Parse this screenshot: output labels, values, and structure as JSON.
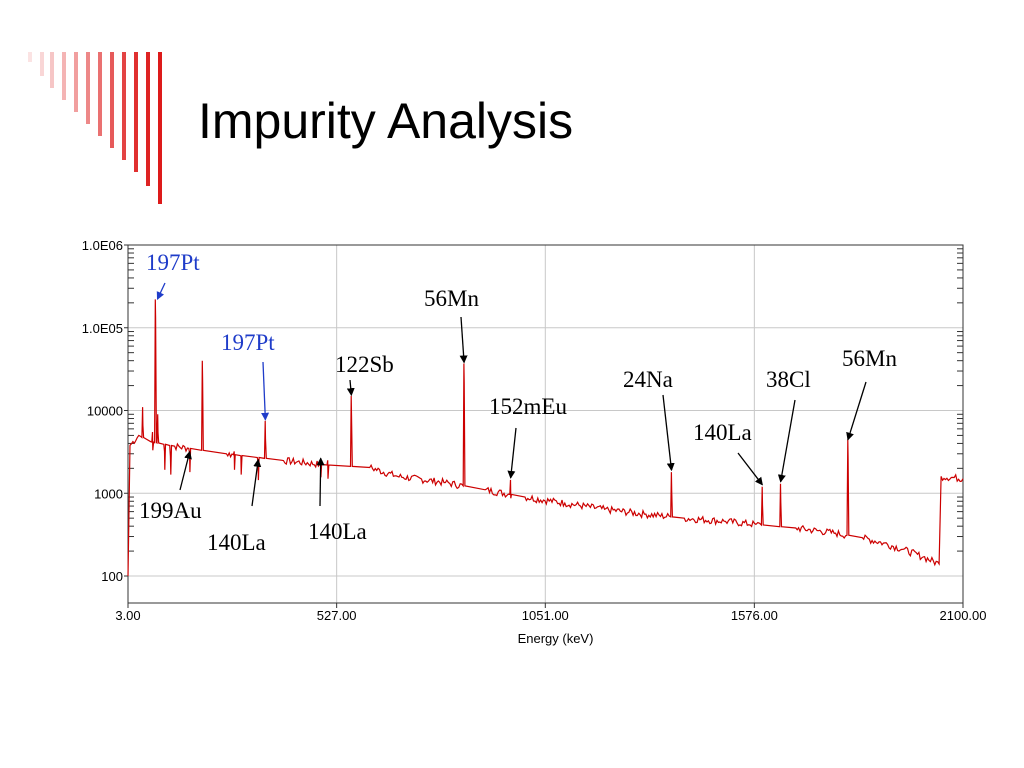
{
  "slide": {
    "title": "Impurity Analysis"
  },
  "colors": {
    "decoration": "#dd1a1a",
    "spectrum": "#cc0000",
    "annotation_blue": "#1f3cc9",
    "annotation_black": "#000000",
    "grid": "#c8c8c8"
  },
  "chart_data": {
    "type": "line",
    "title": "",
    "xlabel": "Energy (keV)",
    "ylabel": "",
    "xlim": [
      3,
      2100
    ],
    "ylim": [
      100,
      1000000
    ],
    "y_scale": "log",
    "grid": true,
    "x_ticks": [
      {
        "value": 3,
        "label": "3.00"
      },
      {
        "value": 527,
        "label": "527.00"
      },
      {
        "value": 1051,
        "label": "1051.00"
      },
      {
        "value": 1576,
        "label": "1576.00"
      },
      {
        "value": 2100,
        "label": "2100.00"
      }
    ],
    "y_ticks": [
      {
        "value": 1000000,
        "label": "1.0E06"
      },
      {
        "value": 100000,
        "label": "1.0E05"
      },
      {
        "value": 10000,
        "label": "10000"
      },
      {
        "value": 1000,
        "label": "1000"
      },
      {
        "value": 100,
        "label": "100"
      }
    ],
    "series": [
      {
        "baseline": [
          [
            3,
            100
          ],
          [
            8,
            3800
          ],
          [
            30,
            5000
          ],
          [
            60,
            4200
          ],
          [
            120,
            3700
          ],
          [
            250,
            3000
          ],
          [
            390,
            2500
          ],
          [
            500,
            2200
          ],
          [
            610,
            2050
          ],
          [
            680,
            1600
          ],
          [
            800,
            1350
          ],
          [
            900,
            1100
          ],
          [
            1000,
            900
          ],
          [
            1100,
            760
          ],
          [
            1200,
            640
          ],
          [
            1300,
            560
          ],
          [
            1400,
            500
          ],
          [
            1500,
            460
          ],
          [
            1580,
            420
          ],
          [
            1680,
            380
          ],
          [
            1780,
            330
          ],
          [
            1847,
            290
          ],
          [
            1900,
            250
          ],
          [
            1950,
            210
          ],
          [
            2000,
            170
          ],
          [
            2040,
            140
          ],
          [
            2045,
            1600
          ],
          [
            2100,
            1500
          ]
        ],
        "peaks": [
          [
            40,
            11000
          ],
          [
            65,
            5500
          ],
          [
            72,
            220000
          ],
          [
            78,
            9000
          ],
          [
            95,
            3200
          ],
          [
            110,
            2800
          ],
          [
            158,
            3000
          ],
          [
            190,
            40000
          ],
          [
            270,
            3200
          ],
          [
            287,
            2800
          ],
          [
            330,
            2400
          ],
          [
            348,
            7500
          ],
          [
            487,
            2600
          ],
          [
            505,
            2500
          ],
          [
            564,
            15000
          ],
          [
            847,
            37000
          ],
          [
            964,
            1450
          ],
          [
            1368,
            1800
          ],
          [
            1596,
            1200
          ],
          [
            1642,
            1300
          ],
          [
            1811,
            4500
          ]
        ]
      }
    ],
    "annotations": [
      {
        "text": "197Pt",
        "color": "blue",
        "target": [
          77,
          210000
        ]
      },
      {
        "text": "197Pt",
        "color": "blue",
        "target": [
          348,
          7300
        ]
      },
      {
        "text": "56Mn",
        "color": "black",
        "target": [
          847,
          36000
        ]
      },
      {
        "text": "122Sb",
        "color": "black",
        "target": [
          564,
          14500
        ]
      },
      {
        "text": "152mEu",
        "color": "black",
        "target": [
          964,
          1450
        ]
      },
      {
        "text": "24Na",
        "color": "black",
        "target": [
          1368,
          1800
        ]
      },
      {
        "text": "38Cl",
        "color": "black",
        "target": [
          1642,
          1300
        ]
      },
      {
        "text": "140La",
        "color": "black",
        "target": [
          1596,
          1200
        ]
      },
      {
        "text": "56Mn",
        "color": "black",
        "target": [
          1811,
          4200
        ]
      },
      {
        "text": "199Au",
        "color": "black",
        "target": [
          158,
          3000
        ]
      },
      {
        "text": "140La",
        "color": "black",
        "target": [
          330,
          2400
        ]
      },
      {
        "text": "140La",
        "color": "black",
        "target": [
          487,
          2500
        ]
      }
    ]
  }
}
